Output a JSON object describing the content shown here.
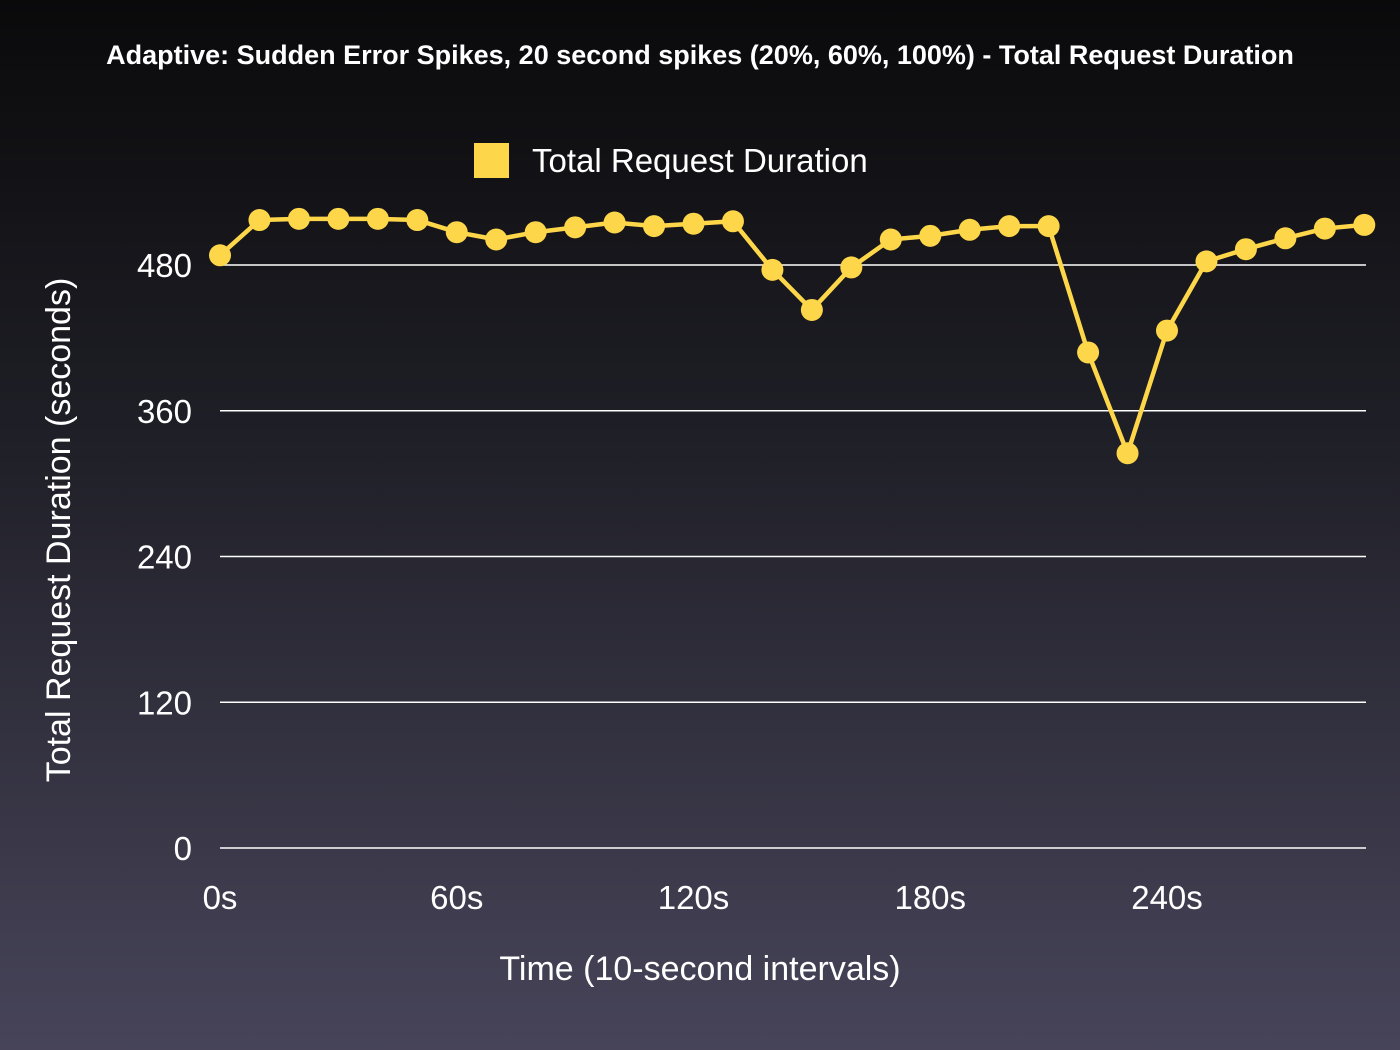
{
  "chart_data": {
    "type": "line",
    "title": "Adaptive: Sudden Error Spikes, 20 second spikes (20%, 60%, 100%) - Total Request Duration",
    "xlabel": "Time (10-second intervals)",
    "ylabel": "Total Request Duration (seconds)",
    "x_tick_labels": [
      "0s",
      "60s",
      "120s",
      "180s",
      "240s"
    ],
    "x_tick_values": [
      0,
      60,
      120,
      180,
      240
    ],
    "y_ticks": [
      0,
      120,
      240,
      360,
      480
    ],
    "xlim": [
      0,
      290
    ],
    "ylim": [
      0,
      530
    ],
    "grid": "horizontal",
    "legend_position": "top-center",
    "series": [
      {
        "name": "Total Request Duration",
        "color": "#fdd64a",
        "x": [
          0,
          10,
          20,
          30,
          40,
          50,
          60,
          70,
          80,
          90,
          100,
          110,
          120,
          130,
          140,
          150,
          160,
          170,
          180,
          190,
          200,
          210,
          220,
          230,
          240,
          250,
          260,
          270,
          280,
          290
        ],
        "values": [
          488,
          517,
          518,
          518,
          518,
          517,
          507,
          501,
          507,
          511,
          515,
          512,
          514,
          516,
          476,
          443,
          478,
          501,
          504,
          509,
          512,
          512,
          408,
          325,
          426,
          483,
          493,
          502,
          510,
          513
        ]
      }
    ]
  }
}
